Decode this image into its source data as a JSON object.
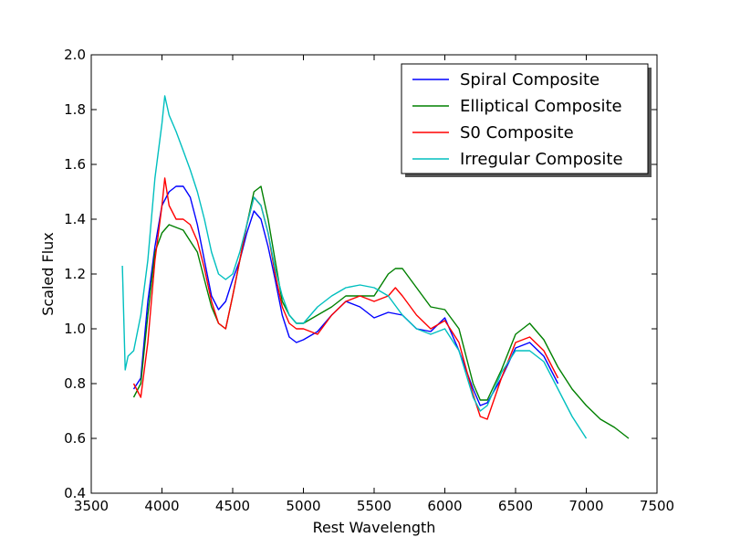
{
  "chart_data": {
    "type": "line",
    "title": "",
    "xlabel": "Rest Wavelength",
    "ylabel": "Scaled Flux",
    "xlim": [
      3500,
      7500
    ],
    "ylim": [
      0.4,
      2.0
    ],
    "xticks": [
      3500,
      4000,
      4500,
      5000,
      5500,
      6000,
      6500,
      7000,
      7500
    ],
    "yticks": [
      0.4,
      0.6,
      0.8,
      1.0,
      1.2,
      1.4,
      1.6,
      1.8,
      2.0
    ],
    "grid": false,
    "legend_position": "top-right",
    "series": [
      {
        "name": "Spiral Composite",
        "color": "#0000ff",
        "x": [
          3800,
          3850,
          3900,
          3950,
          4000,
          4050,
          4100,
          4150,
          4200,
          4250,
          4300,
          4350,
          4400,
          4450,
          4500,
          4550,
          4600,
          4650,
          4700,
          4750,
          4800,
          4850,
          4900,
          4950,
          5000,
          5100,
          5200,
          5300,
          5400,
          5500,
          5600,
          5700,
          5800,
          5900,
          6000,
          6100,
          6200,
          6250,
          6300,
          6400,
          6500,
          6600,
          6700,
          6800
        ],
        "y": [
          0.78,
          0.82,
          1.1,
          1.3,
          1.45,
          1.5,
          1.52,
          1.52,
          1.48,
          1.38,
          1.25,
          1.12,
          1.07,
          1.1,
          1.18,
          1.25,
          1.35,
          1.43,
          1.4,
          1.3,
          1.18,
          1.05,
          0.97,
          0.95,
          0.96,
          0.99,
          1.05,
          1.1,
          1.08,
          1.04,
          1.06,
          1.05,
          1.0,
          0.99,
          1.04,
          0.92,
          0.78,
          0.72,
          0.73,
          0.82,
          0.93,
          0.95,
          0.9,
          0.8
        ]
      },
      {
        "name": "Elliptical Composite",
        "color": "#008000",
        "x": [
          3800,
          3850,
          3900,
          3950,
          4000,
          4050,
          4100,
          4150,
          4200,
          4250,
          4300,
          4350,
          4400,
          4450,
          4500,
          4550,
          4600,
          4650,
          4700,
          4750,
          4800,
          4850,
          4900,
          4950,
          5000,
          5100,
          5200,
          5300,
          5400,
          5500,
          5600,
          5650,
          5700,
          5800,
          5900,
          6000,
          6100,
          6200,
          6250,
          6300,
          6400,
          6500,
          6600,
          6700,
          6800,
          6900,
          7000,
          7100,
          7200,
          7300
        ],
        "y": [
          0.75,
          0.8,
          1.05,
          1.28,
          1.35,
          1.38,
          1.37,
          1.36,
          1.32,
          1.28,
          1.18,
          1.08,
          1.02,
          1.0,
          1.12,
          1.25,
          1.38,
          1.5,
          1.52,
          1.4,
          1.25,
          1.1,
          1.05,
          1.02,
          1.02,
          1.05,
          1.08,
          1.12,
          1.12,
          1.12,
          1.2,
          1.22,
          1.22,
          1.15,
          1.08,
          1.07,
          1.0,
          0.8,
          0.74,
          0.74,
          0.85,
          0.98,
          1.02,
          0.96,
          0.86,
          0.78,
          0.72,
          0.67,
          0.64,
          0.6
        ]
      },
      {
        "name": "S0 Composite",
        "color": "#ff0000",
        "x": [
          3800,
          3850,
          3900,
          3950,
          4000,
          4020,
          4050,
          4100,
          4150,
          4200,
          4250,
          4300,
          4350,
          4400,
          4450,
          4500,
          4550,
          4600,
          4650,
          4700,
          4750,
          4800,
          4850,
          4900,
          4950,
          5000,
          5100,
          5200,
          5300,
          5400,
          5500,
          5600,
          5650,
          5700,
          5800,
          5900,
          6000,
          6100,
          6200,
          6250,
          6300,
          6400,
          6500,
          6600,
          6700,
          6800
        ],
        "y": [
          0.8,
          0.75,
          0.95,
          1.25,
          1.45,
          1.55,
          1.45,
          1.4,
          1.4,
          1.38,
          1.32,
          1.22,
          1.1,
          1.02,
          1.0,
          1.12,
          1.25,
          1.38,
          1.48,
          1.45,
          1.35,
          1.2,
          1.08,
          1.02,
          1.0,
          1.0,
          0.98,
          1.05,
          1.1,
          1.12,
          1.1,
          1.12,
          1.15,
          1.12,
          1.05,
          1.0,
          1.03,
          0.95,
          0.76,
          0.68,
          0.67,
          0.82,
          0.95,
          0.97,
          0.92,
          0.82
        ]
      },
      {
        "name": "Irregular Composite",
        "color": "#00bfbf",
        "x": [
          3720,
          3740,
          3760,
          3800,
          3850,
          3900,
          3950,
          4000,
          4020,
          4050,
          4100,
          4150,
          4200,
          4250,
          4300,
          4350,
          4400,
          4450,
          4500,
          4550,
          4600,
          4650,
          4700,
          4750,
          4800,
          4850,
          4900,
          4950,
          5000,
          5100,
          5200,
          5300,
          5400,
          5500,
          5600,
          5700,
          5800,
          5900,
          6000,
          6100,
          6200,
          6250,
          6300,
          6400,
          6500,
          6600,
          6700,
          6800,
          6900,
          7000
        ],
        "y": [
          1.23,
          0.85,
          0.9,
          0.92,
          1.05,
          1.25,
          1.55,
          1.75,
          1.85,
          1.78,
          1.72,
          1.65,
          1.58,
          1.5,
          1.4,
          1.28,
          1.2,
          1.18,
          1.2,
          1.28,
          1.38,
          1.48,
          1.45,
          1.35,
          1.22,
          1.12,
          1.05,
          1.02,
          1.02,
          1.08,
          1.12,
          1.15,
          1.16,
          1.15,
          1.12,
          1.05,
          1.0,
          0.98,
          1.0,
          0.92,
          0.75,
          0.7,
          0.72,
          0.84,
          0.92,
          0.92,
          0.88,
          0.78,
          0.68,
          0.6
        ]
      }
    ]
  }
}
